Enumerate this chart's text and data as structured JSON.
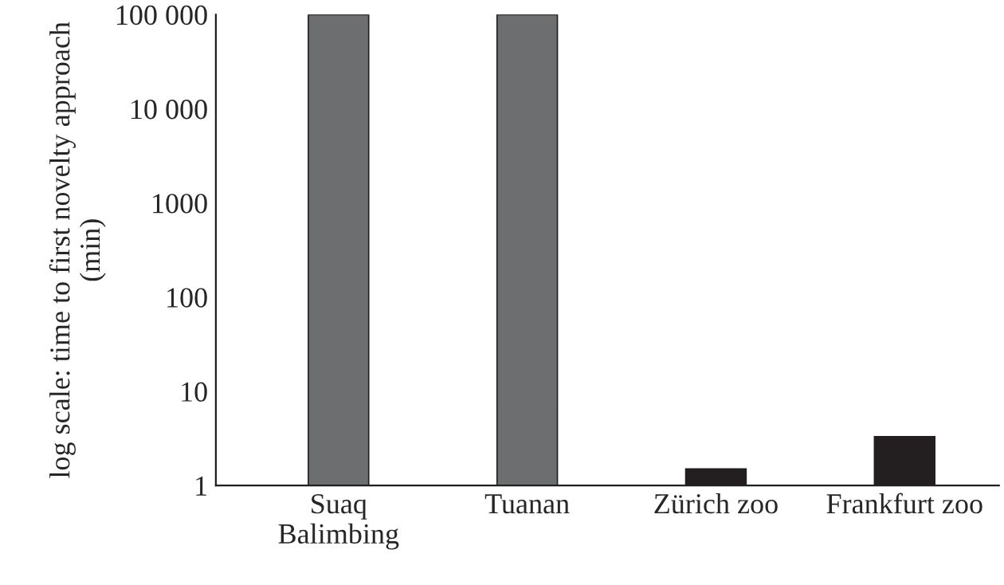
{
  "chart_data": {
    "type": "bar",
    "ylabel": "log scale: time to first novelty approach (min)",
    "categories": [
      "Suaq\nBalimbing",
      "Tuanan",
      "Zürich zoo",
      "Frankfurt zoo"
    ],
    "values": [
      100000,
      100000,
      1.5,
      3.3
    ],
    "colors": [
      "#6d6e70",
      "#6d6e70",
      "#231f20",
      "#231f20"
    ],
    "log": "y",
    "ylim": [
      1,
      100000
    ],
    "yticks": [
      1,
      10,
      100,
      1000,
      {
        "value": 10000,
        "label": "10 000"
      },
      {
        "value": 100000,
        "label": "100 000"
      }
    ],
    "grid": false,
    "legend": false
  }
}
